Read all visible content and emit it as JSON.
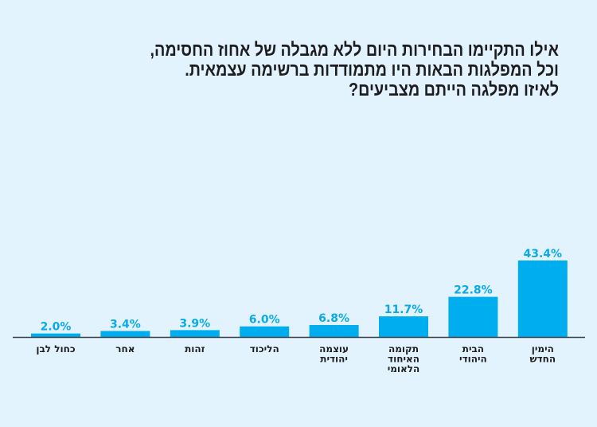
{
  "title_lines": [
    "אילו התקיימו הבחירות היום ללא מגבלה של אחוז החסימה,",
    "וכל המפלגות הבאות היו מתמודדות ברשימה עצמאית.",
    "לאיזו מפלגה הייתם מצביעים?"
  ],
  "colors": {
    "bar": "#00aeef",
    "label": "#0aaae8",
    "axis": "#3a3f4a",
    "background": "#e3f3fd"
  },
  "chart_data": {
    "type": "bar",
    "title": "אילו התקיימו הבחירות היום ללא מגבלה של אחוז החסימה, וכל המפלגות הבאות היו מתמודדות ברשימה עצמאית. לאיזו מפלגה הייתם מצביעים?",
    "categories": [
      [
        "כחול לבן"
      ],
      [
        "אחר"
      ],
      [
        "זהות"
      ],
      [
        "הליכוד"
      ],
      [
        "עוצמה",
        "יהודית"
      ],
      [
        "תקומה",
        "האיחוד",
        "הלאומי"
      ],
      [
        "הבית",
        "היהודי"
      ],
      [
        "הימין",
        "החדש"
      ]
    ],
    "values": [
      2.0,
      3.4,
      3.9,
      6.0,
      6.8,
      11.7,
      22.8,
      43.4
    ],
    "value_labels": [
      "2.0%",
      "3.4%",
      "3.9%",
      "6.0%",
      "6.8%",
      "11.7%",
      "22.8%",
      "43.4%"
    ],
    "xlabel": "",
    "ylabel": "",
    "ylim": [
      0,
      43.4
    ],
    "grid": false,
    "legend": "none"
  }
}
